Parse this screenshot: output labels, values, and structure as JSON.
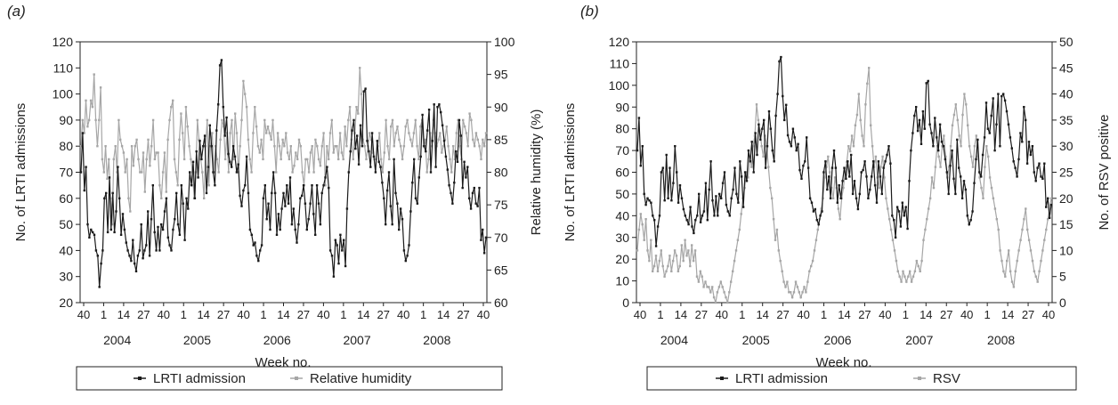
{
  "chart_data": [
    {
      "panel_label": "(a)",
      "type": "line",
      "xlabel": "Week no.",
      "ylabel_left": "No. of LRTI admissions",
      "ylabel_right": "Relative humidity (%)",
      "ylim_left": [
        20,
        120
      ],
      "ylim_right": [
        60,
        100
      ],
      "yticks_left": [
        "20",
        "30",
        "40",
        "50",
        "60",
        "70",
        "80",
        "90",
        "100",
        "110",
        "120"
      ],
      "yticks_right": [
        "60",
        "65",
        "70",
        "75",
        "80",
        "85",
        "90",
        "95",
        "100"
      ],
      "xticks": [
        "40",
        "1",
        "14",
        "27",
        "40",
        "1",
        "14",
        "27",
        "40",
        "1",
        "14",
        "27",
        "40",
        "1",
        "14",
        "27",
        "40",
        "1",
        "14",
        "27",
        "40"
      ],
      "years": [
        "2004",
        "2005",
        "2006",
        "2007",
        "2008"
      ],
      "legend": [
        "LRTI admission",
        "Relative humidity"
      ],
      "series": [
        {
          "name": "LRTI admission",
          "axis": "left",
          "color": "#1a1a1a",
          "values": [
            70,
            85,
            63,
            72,
            50,
            45,
            48,
            47,
            46,
            40,
            38,
            26,
            35,
            40,
            60,
            62,
            47,
            68,
            48,
            62,
            47,
            55,
            72,
            60,
            46,
            54,
            48,
            43,
            40,
            38,
            36,
            44,
            35,
            32,
            38,
            40,
            50,
            37,
            40,
            42,
            55,
            38,
            52,
            65,
            47,
            40,
            49,
            40,
            50,
            48,
            55,
            60,
            45,
            42,
            40,
            48,
            52,
            62,
            50,
            46,
            65,
            58,
            44,
            60,
            56,
            70,
            65,
            74,
            60,
            78,
            68,
            82,
            75,
            80,
            84,
            62,
            72,
            88,
            80,
            70,
            65,
            86,
            96,
            111,
            113,
            95,
            84,
            91,
            77,
            74,
            72,
            80,
            76,
            70,
            73,
            61,
            57,
            63,
            65,
            76,
            62,
            48,
            46,
            42,
            43,
            38,
            36,
            40,
            42,
            60,
            65,
            52,
            58,
            48,
            62,
            70,
            62,
            46,
            54,
            48,
            56,
            62,
            57,
            65,
            58,
            68,
            50,
            56,
            48,
            43,
            50,
            60,
            61,
            65,
            58,
            48,
            52,
            58,
            65,
            54,
            46,
            65,
            58,
            50,
            62,
            65,
            68,
            72,
            64,
            40,
            38,
            30,
            44,
            42,
            35,
            46,
            40,
            44,
            34,
            56,
            70,
            78,
            86,
            90,
            79,
            84,
            73,
            88,
            80,
            101,
            102,
            82,
            78,
            72,
            85,
            76,
            70,
            82,
            74,
            72,
            66,
            60,
            50,
            63,
            70,
            57,
            50,
            75,
            62,
            58,
            48,
            56,
            52,
            40,
            36,
            38,
            42,
            55,
            66,
            75,
            60,
            58,
            68,
            76,
            92,
            80,
            78,
            86,
            94,
            70,
            82,
            96,
            72,
            95,
            96,
            93,
            88,
            82,
            76,
            71,
            65,
            62,
            58,
            66,
            78,
            74,
            90,
            84,
            64,
            74,
            68,
            72,
            60,
            56,
            62,
            64,
            58,
            57,
            64,
            44,
            48,
            39,
            45
          ]
        },
        {
          "name": "Relative humidity",
          "axis": "right",
          "color": "#a6a6a6",
          "values": [
            84,
            88,
            86,
            91,
            87,
            88,
            91,
            90,
            95,
            88,
            84,
            88,
            93,
            82,
            80,
            84,
            79,
            82,
            76,
            72,
            82,
            84,
            80,
            88,
            85,
            84,
            83,
            80,
            82,
            76,
            74,
            84,
            81,
            84,
            85,
            82,
            80,
            80,
            83,
            77,
            82,
            85,
            81,
            84,
            88,
            82,
            83,
            83,
            78,
            76,
            80,
            83,
            77,
            85,
            88,
            90,
            91,
            82,
            80,
            78,
            85,
            89,
            86,
            82,
            90,
            87,
            84,
            82,
            80,
            76,
            80,
            88,
            85,
            82,
            80,
            76,
            84,
            88,
            78,
            84,
            86,
            80,
            84,
            82,
            80,
            85,
            88,
            87,
            82,
            86,
            80,
            86,
            88,
            82,
            89,
            86,
            80,
            84,
            88,
            94,
            92,
            90,
            85,
            82,
            80,
            86,
            90,
            87,
            84,
            83,
            85,
            82,
            88,
            86,
            87,
            86,
            85,
            88,
            84,
            80,
            86,
            84,
            82,
            85,
            84,
            86,
            83,
            82,
            84,
            80,
            81,
            83,
            82,
            85,
            84,
            80,
            78,
            82,
            82,
            80,
            83,
            84,
            80,
            85,
            84,
            82,
            81,
            84,
            86,
            78,
            84,
            82,
            86,
            88,
            83,
            84,
            84,
            82,
            86,
            83,
            82,
            87,
            84,
            88,
            90,
            85,
            82,
            86,
            90,
            89,
            96,
            92,
            85,
            84,
            82,
            84,
            86,
            85,
            83,
            82,
            82,
            84,
            86,
            82,
            80,
            83,
            88,
            84,
            82,
            87,
            88,
            84,
            86,
            87,
            85,
            84,
            82,
            84,
            87,
            88,
            86,
            85,
            84,
            86,
            88,
            84,
            82,
            87,
            88,
            84,
            85,
            80,
            82,
            86,
            84,
            88,
            86,
            84,
            85,
            86,
            83,
            84,
            85,
            87,
            84,
            82,
            80,
            84,
            82,
            86,
            88,
            84,
            82,
            88,
            87,
            86,
            84,
            89,
            88,
            85,
            84,
            86,
            85,
            84,
            82,
            85,
            84,
            86
          ]
        }
      ]
    },
    {
      "panel_label": "(b)",
      "type": "line",
      "xlabel": "Week no.",
      "ylabel_left": "No. of LRTI admissions",
      "ylabel_right": "No. of RSV positive",
      "ylim_left": [
        0,
        120
      ],
      "ylim_right": [
        0,
        50
      ],
      "yticks_left": [
        "0",
        "10",
        "20",
        "30",
        "40",
        "50",
        "60",
        "70",
        "80",
        "90",
        "100",
        "110",
        "120"
      ],
      "yticks_right": [
        "0",
        "5",
        "10",
        "15",
        "20",
        "25",
        "30",
        "35",
        "40",
        "45",
        "50"
      ],
      "xticks": [
        "40",
        "1",
        "14",
        "27",
        "40",
        "1",
        "14",
        "27",
        "40",
        "1",
        "14",
        "27",
        "40",
        "1",
        "14",
        "27",
        "40",
        "1",
        "14",
        "27",
        "40"
      ],
      "years": [
        "2004",
        "2005",
        "2006",
        "2007",
        "2008"
      ],
      "legend": [
        "LRTI admission",
        "RSV"
      ],
      "series": [
        {
          "name": "LRTI admission",
          "axis": "left",
          "color": "#1a1a1a",
          "values": [
            70,
            85,
            63,
            72,
            50,
            45,
            48,
            47,
            46,
            40,
            38,
            26,
            35,
            40,
            60,
            62,
            47,
            68,
            48,
            62,
            47,
            55,
            72,
            60,
            46,
            54,
            48,
            43,
            40,
            38,
            36,
            44,
            35,
            32,
            38,
            40,
            50,
            37,
            40,
            42,
            55,
            38,
            52,
            65,
            47,
            40,
            49,
            40,
            50,
            48,
            55,
            60,
            45,
            42,
            40,
            48,
            52,
            62,
            50,
            46,
            65,
            58,
            44,
            60,
            56,
            70,
            65,
            74,
            60,
            78,
            68,
            82,
            75,
            80,
            84,
            62,
            72,
            88,
            80,
            70,
            65,
            86,
            96,
            111,
            113,
            95,
            84,
            91,
            77,
            74,
            72,
            80,
            76,
            70,
            73,
            61,
            57,
            63,
            65,
            76,
            62,
            48,
            46,
            42,
            43,
            38,
            36,
            40,
            42,
            60,
            65,
            52,
            58,
            48,
            62,
            70,
            62,
            46,
            54,
            48,
            56,
            62,
            57,
            65,
            58,
            68,
            50,
            56,
            48,
            43,
            50,
            60,
            61,
            65,
            58,
            48,
            52,
            58,
            65,
            54,
            46,
            65,
            58,
            50,
            62,
            65,
            68,
            72,
            64,
            40,
            38,
            30,
            44,
            42,
            35,
            46,
            40,
            44,
            34,
            56,
            70,
            78,
            86,
            90,
            79,
            84,
            73,
            88,
            80,
            101,
            102,
            82,
            78,
            72,
            85,
            76,
            70,
            82,
            74,
            72,
            66,
            60,
            50,
            63,
            70,
            57,
            50,
            75,
            62,
            58,
            48,
            56,
            52,
            40,
            36,
            38,
            42,
            55,
            66,
            75,
            60,
            58,
            68,
            76,
            92,
            80,
            78,
            86,
            94,
            70,
            82,
            96,
            72,
            95,
            96,
            93,
            88,
            82,
            76,
            71,
            65,
            62,
            58,
            66,
            78,
            74,
            90,
            84,
            64,
            74,
            68,
            72,
            60,
            56,
            62,
            64,
            58,
            57,
            64,
            44,
            48,
            39,
            45
          ]
        },
        {
          "name": "RSV",
          "axis": "right",
          "color": "#a6a6a6",
          "values": [
            10,
            14,
            17,
            15,
            12,
            16,
            10,
            8,
            12,
            6,
            7,
            9,
            6,
            8,
            10,
            7,
            5,
            6,
            7,
            9,
            6,
            8,
            10,
            9,
            6,
            7,
            11,
            8,
            12,
            9,
            10,
            7,
            11,
            8,
            10,
            5,
            4,
            6,
            5,
            3,
            4,
            3,
            3,
            2,
            3,
            1,
            0,
            2,
            3,
            4,
            3,
            2,
            1,
            0,
            2,
            4,
            6,
            8,
            10,
            12,
            14,
            17,
            20,
            22,
            25,
            24,
            28,
            26,
            30,
            32,
            38,
            35,
            33,
            30,
            28,
            32,
            30,
            26,
            22,
            20,
            16,
            12,
            14,
            10,
            8,
            6,
            4,
            3,
            4,
            2,
            2,
            1,
            2,
            4,
            3,
            2,
            1,
            2,
            3,
            2,
            4,
            6,
            7,
            8,
            10,
            12,
            14,
            16,
            18,
            20,
            24,
            26,
            28,
            25,
            22,
            20,
            24,
            22,
            18,
            16,
            20,
            22,
            25,
            27,
            30,
            29,
            32,
            30,
            34,
            36,
            40,
            35,
            32,
            30,
            38,
            42,
            45,
            34,
            30,
            26,
            28,
            24,
            22,
            26,
            28,
            24,
            20,
            18,
            16,
            14,
            12,
            10,
            8,
            6,
            5,
            4,
            6,
            5,
            4,
            5,
            6,
            4,
            5,
            6,
            8,
            7,
            6,
            8,
            12,
            14,
            16,
            18,
            20,
            24,
            22,
            26,
            30,
            28,
            26,
            30,
            32,
            28,
            24,
            26,
            30,
            34,
            36,
            38,
            35,
            32,
            30,
            36,
            40,
            38,
            34,
            30,
            28,
            26,
            30,
            32,
            28,
            24,
            22,
            20,
            26,
            30,
            28,
            24,
            22,
            20,
            18,
            16,
            14,
            10,
            8,
            6,
            5,
            8,
            10,
            6,
            4,
            3,
            6,
            8,
            10,
            12,
            14,
            16,
            18,
            14,
            12,
            10,
            8,
            6,
            5,
            4,
            6,
            8,
            10,
            12,
            14,
            16,
            18,
            20
          ]
        }
      ]
    }
  ]
}
